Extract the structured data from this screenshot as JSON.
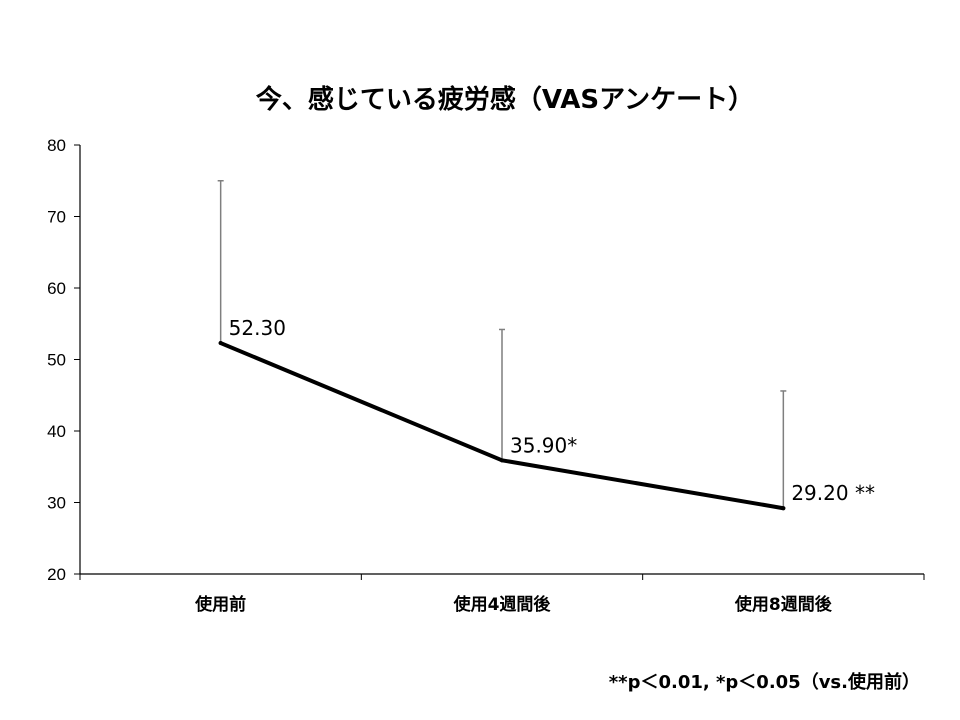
{
  "chart_data": {
    "type": "line",
    "title": "今、感じている疲労感（VASアンケート）",
    "categories": [
      "使用前",
      "使用4週間後",
      "使用8週間後"
    ],
    "values": [
      52.3,
      35.9,
      29.2
    ],
    "error_upper": [
      75.0,
      54.2,
      45.6
    ],
    "data_labels": [
      "52.30",
      "35.90*",
      "29.20 **"
    ],
    "ylim": [
      20,
      80
    ],
    "yticks": [
      20,
      30,
      40,
      50,
      60,
      70,
      80
    ],
    "grid": false,
    "legend": "none",
    "colors": {
      "line": "#000000",
      "error_bar": "#7f7f7f",
      "axis": "#000000"
    }
  },
  "footnote": "**p＜0.01, *p＜0.05（vs.使用前）"
}
